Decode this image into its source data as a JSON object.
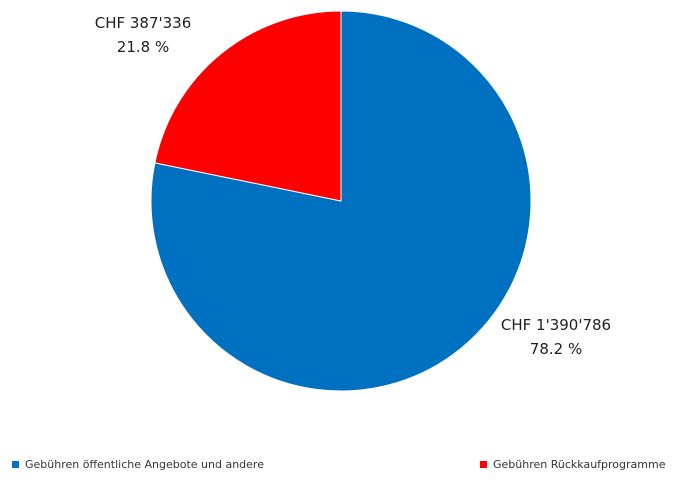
{
  "chart_data": {
    "type": "pie",
    "title": "",
    "slices": [
      {
        "name": "Gebühren öffentliche Angebote und andere",
        "value": 1390786,
        "value_label": "CHF 1'390'786",
        "percent_label": "78.2 %",
        "color": "#0070C0"
      },
      {
        "name": "Gebühren Rückkaufprogramme",
        "value": 387336,
        "value_label": "CHF 387'336",
        "percent_label": "21.8 %",
        "color": "#FF0000"
      }
    ],
    "legend_position": "bottom"
  }
}
